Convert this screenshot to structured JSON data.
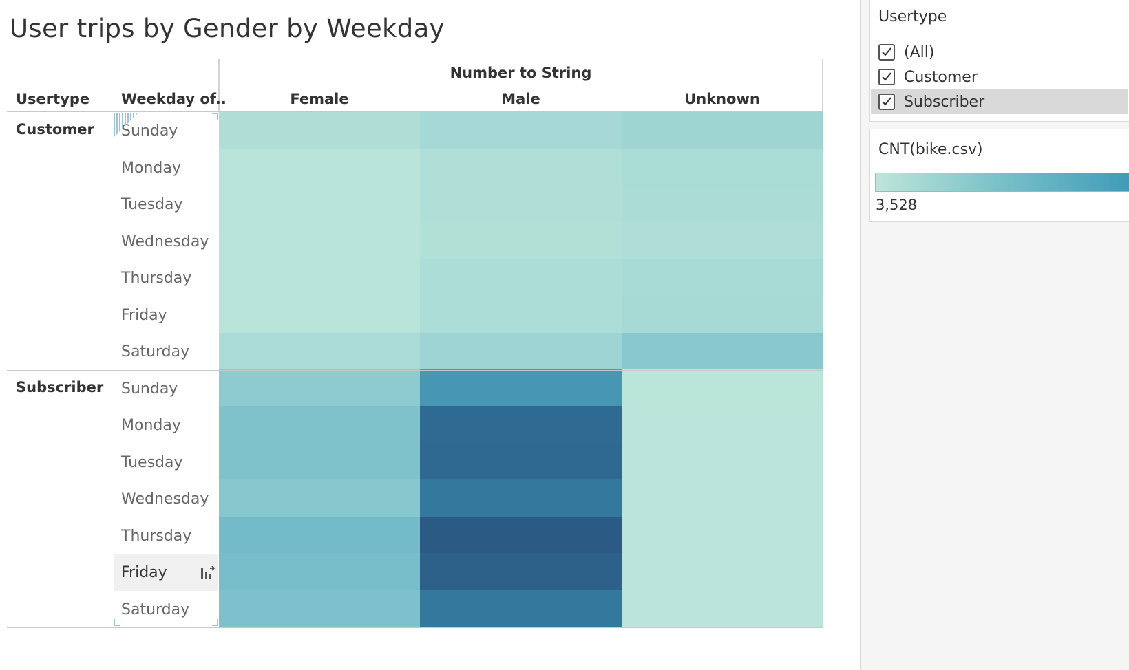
{
  "title": "User trips by Gender by Weekday",
  "row_headers": {
    "usertype": "Usertype",
    "weekday": "Weekday of.."
  },
  "column_header_title": "Number to String",
  "chart_data": {
    "type": "heatmap",
    "title": "User trips by Gender by Weekday",
    "measure": "CNT(bike.csv)",
    "column_field": "Number to String",
    "columns": [
      "Female",
      "Male",
      "Unknown"
    ],
    "row_fields": [
      "Usertype",
      "Weekday of.."
    ],
    "row_groups": [
      {
        "name": "Customer",
        "weekdays": [
          "Sunday",
          "Monday",
          "Tuesday",
          "Wednesday",
          "Thursday",
          "Friday",
          "Saturday"
        ],
        "values": [
          [
            7500,
            10200,
            12600
          ],
          [
            4800,
            7400,
            9000
          ],
          [
            4500,
            7300,
            8700
          ],
          [
            4400,
            6900,
            7700
          ],
          [
            4600,
            8200,
            9400
          ],
          [
            4700,
            8300,
            9600
          ],
          [
            9100,
            12900,
            19200
          ]
        ]
      },
      {
        "name": "Subscriber",
        "weekdays": [
          "Sunday",
          "Monday",
          "Tuesday",
          "Wednesday",
          "Thursday",
          "Friday",
          "Saturday"
        ],
        "values": [
          [
            18000,
            41000,
            4200
          ],
          [
            22500,
            56500,
            3800
          ],
          [
            22500,
            57000,
            3800
          ],
          [
            20000,
            51000,
            3800
          ],
          [
            26500,
            62500,
            3800
          ],
          [
            25000,
            60000,
            3800
          ],
          [
            23000,
            51500,
            3800
          ]
        ]
      }
    ],
    "color_range": [
      3528,
      62500
    ],
    "colors": {
      "low": "#bce6da",
      "high": "#2b5a84"
    }
  },
  "filter_card": {
    "title": "Usertype",
    "items": [
      {
        "label": "(All)",
        "checked": true
      },
      {
        "label": "Customer",
        "checked": true
      },
      {
        "label": "Subscriber",
        "checked": true
      }
    ]
  },
  "legend_card": {
    "title": "CNT(bike.csv)",
    "min_label": "3,528",
    "gradient": [
      "#bfe5da",
      "#7cc3ca",
      "#3d9ab7"
    ]
  },
  "selected_row": "Subscriber Friday"
}
